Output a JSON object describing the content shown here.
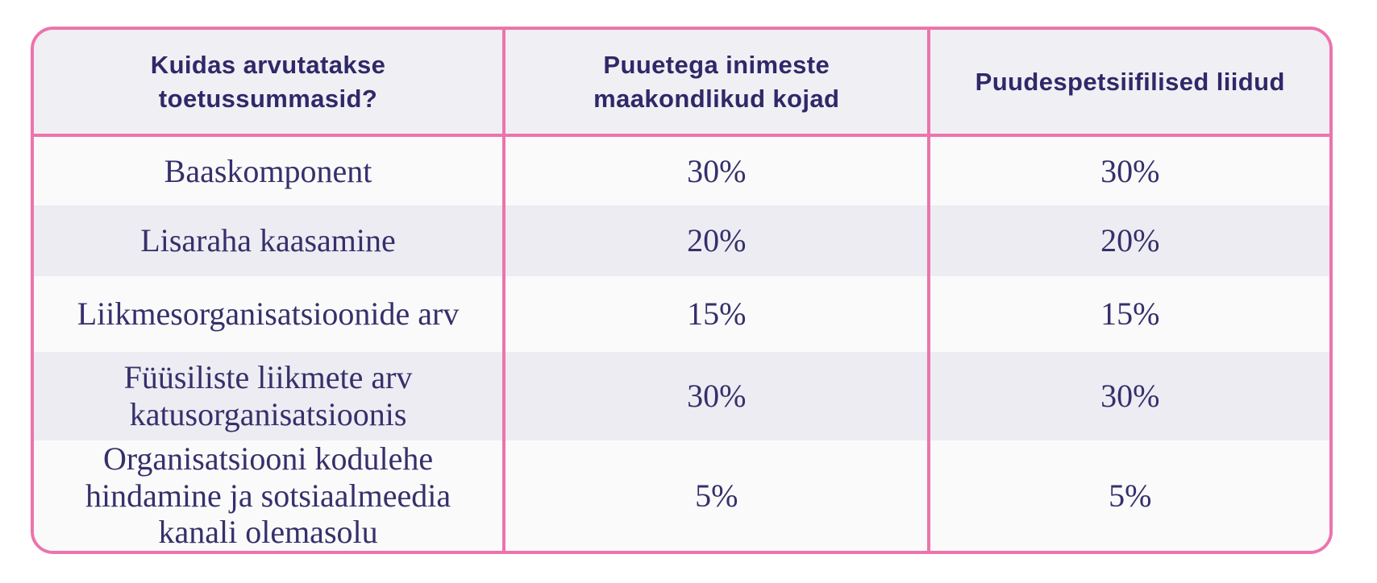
{
  "table": {
    "title_question": "Kuidas arvutatakse toetussummasid?",
    "headers": [
      {
        "label": "Kuidas arvutatakse toetussummasid?"
      },
      {
        "label": "Puuetega inimeste maakondlikud kojad"
      },
      {
        "label": "Puudespetsiifilised liidud"
      }
    ],
    "rows": [
      {
        "criterion": "Baaskomponent",
        "kojad": "30%",
        "liidud": "30%"
      },
      {
        "criterion": "Lisaraha kaasamine",
        "kojad": "20%",
        "liidud": "20%"
      },
      {
        "criterion": "Liikmesorganisatsioonide arv",
        "kojad": "15%",
        "liidud": "15%"
      },
      {
        "criterion": "Füüsiliste liikmete arv katusorganisatsioonis",
        "kojad": "30%",
        "liidud": "30%"
      },
      {
        "criterion": "Organisatsiooni kodulehe hindamine ja sotsiaalmeedia kanali olemasolu",
        "kojad": "5%",
        "liidud": "5%"
      }
    ],
    "colors": {
      "border_pink": "#EC74AC",
      "header_bg": "#F0EFF4",
      "row_bg": "#FAFAFA",
      "row_alt_bg": "#EDECF2",
      "header_text": "#2F2868",
      "body_text": "#35306B",
      "page_bg": "#FFFFFF"
    }
  }
}
